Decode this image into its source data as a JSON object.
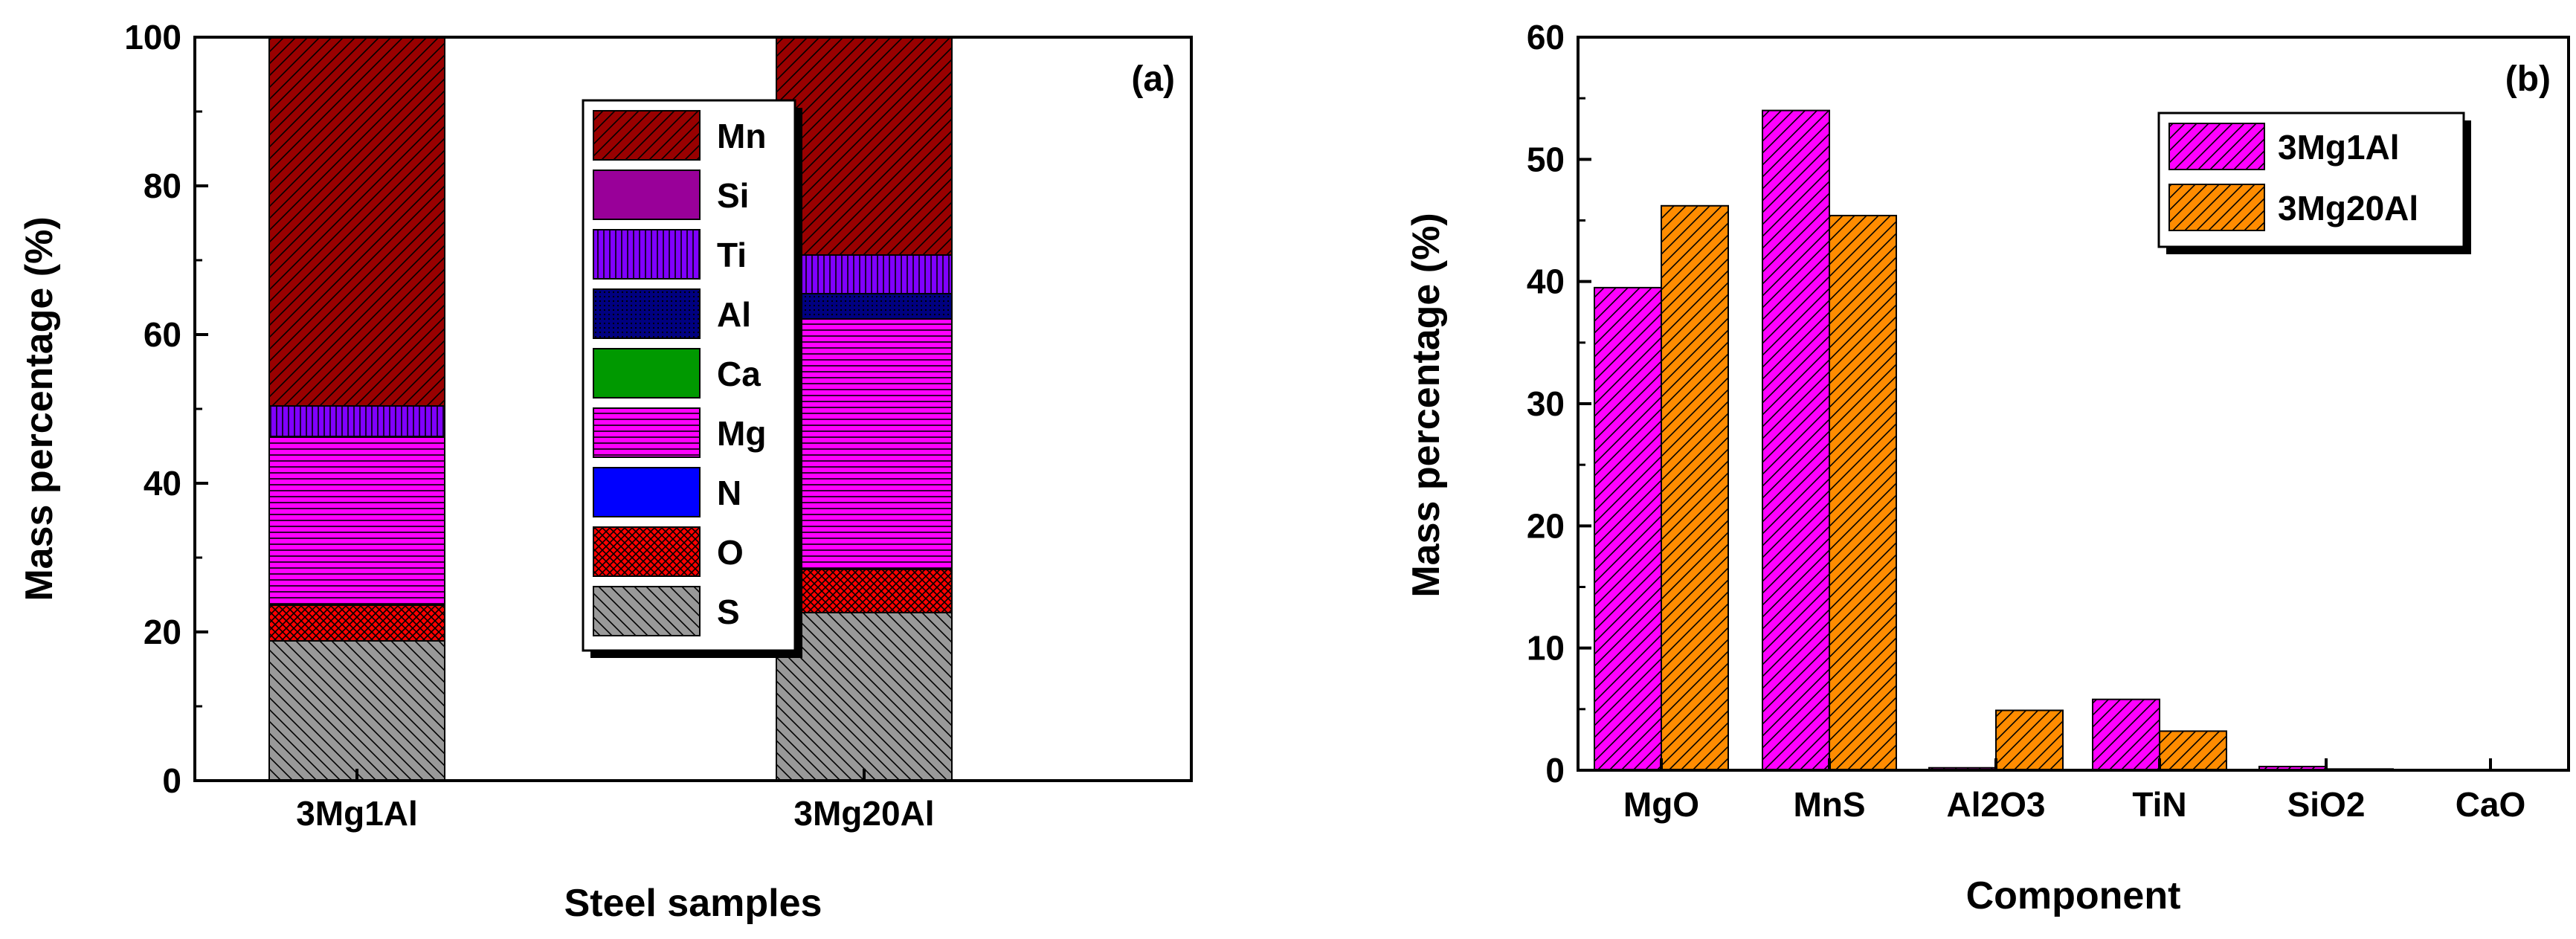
{
  "chart_data": [
    {
      "type": "bar",
      "stacked": true,
      "panel_label": "(a)",
      "xlabel": "Steel samples",
      "ylabel": "Mass percentage (%)",
      "ylim": [
        0,
        100
      ],
      "yticks": [
        "0",
        "20",
        "40",
        "60",
        "80",
        "100"
      ],
      "categories": [
        "3Mg1Al",
        "3Mg20Al"
      ],
      "legend_position": "upper-right inside plot",
      "series": [
        {
          "name": "S",
          "values": [
            18.8,
            22.6
          ],
          "color": "#999999",
          "pattern": "diag-back"
        },
        {
          "name": "O",
          "values": [
            4.8,
            5.8
          ],
          "color": "#ff0000",
          "pattern": "crosshatch"
        },
        {
          "name": "N",
          "values": [
            0.1,
            0.1
          ],
          "color": "#0000ff",
          "pattern": "solid"
        },
        {
          "name": "Mg",
          "values": [
            22.5,
            33.6
          ],
          "color": "#ff00ff",
          "pattern": "horizontal"
        },
        {
          "name": "Ca",
          "values": [
            0,
            0
          ],
          "color": "#009900",
          "pattern": "solid"
        },
        {
          "name": "Al",
          "values": [
            0.1,
            3.4
          ],
          "color": "#000080",
          "pattern": "dots"
        },
        {
          "name": "Ti",
          "values": [
            4.1,
            5.2
          ],
          "color": "#8000ff",
          "pattern": "vertical"
        },
        {
          "name": "Si",
          "values": [
            0,
            0
          ],
          "color": "#990099",
          "pattern": "solid"
        },
        {
          "name": "Mn",
          "values": [
            49.6,
            29.3
          ],
          "color": "#990000",
          "pattern": "diag-fwd"
        }
      ]
    },
    {
      "type": "bar",
      "grouped": true,
      "panel_label": "(b)",
      "xlabel": "Component",
      "ylabel": "Mass percentage (%)",
      "ylim": [
        0,
        60
      ],
      "yticks": [
        "0",
        "10",
        "20",
        "30",
        "40",
        "50",
        "60"
      ],
      "categories": [
        "MgO",
        "MnS",
        "Al2O3",
        "TiN",
        "SiO2",
        "CaO"
      ],
      "legend_position": "upper-right inside plot",
      "series": [
        {
          "name": "3Mg1Al",
          "values": [
            39.5,
            54.0,
            0.2,
            5.8,
            0.3,
            0.0
          ],
          "color": "#ff00ff",
          "pattern": "diag-fwd"
        },
        {
          "name": "3Mg20Al",
          "values": [
            46.2,
            45.4,
            4.9,
            3.2,
            0.1,
            0.0
          ],
          "color": "#ff8c00",
          "pattern": "diag-fwd"
        }
      ]
    }
  ]
}
